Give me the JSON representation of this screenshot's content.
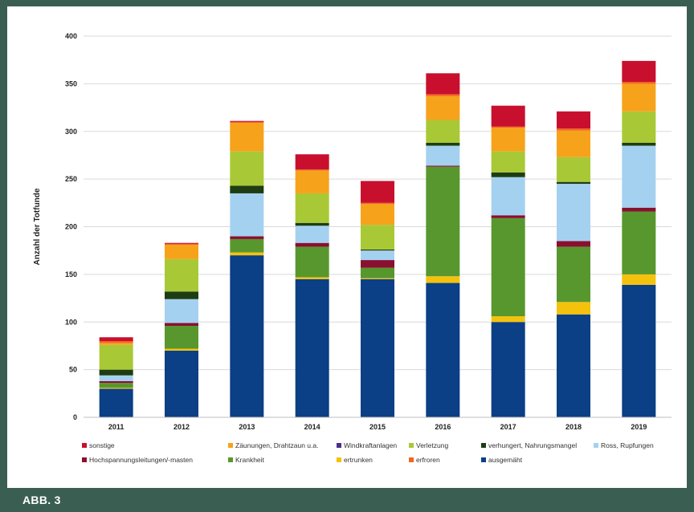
{
  "caption": "ABB. 3",
  "chart_data": {
    "type": "bar",
    "stacked": true,
    "title": "",
    "xlabel": "",
    "ylabel": "Anzahl der Totfunde",
    "ylim": [
      0,
      400
    ],
    "yticks": [
      0,
      50,
      100,
      150,
      200,
      250,
      300,
      350,
      400
    ],
    "grid": true,
    "legend_position": "bottom",
    "categories": [
      "2011",
      "2012",
      "2013",
      "2014",
      "2015",
      "2016",
      "2017",
      "2018",
      "2019"
    ],
    "series": [
      {
        "name": "ausgemäht",
        "color": "#0b3f86",
        "values": [
          30,
          70,
          170,
          145,
          145,
          141,
          100,
          108,
          139
        ]
      },
      {
        "name": "ertrunken",
        "color": "#f4c20d",
        "values": [
          1,
          2,
          3,
          2,
          1,
          7,
          6,
          13,
          11
        ]
      },
      {
        "name": "Krankheit",
        "color": "#58972e",
        "values": [
          5,
          24,
          14,
          32,
          11,
          115,
          103,
          58,
          66
        ]
      },
      {
        "name": "Hochspannungsleitungen/-masten",
        "color": "#8a1030",
        "values": [
          2,
          3,
          3,
          4,
          8,
          1,
          3,
          6,
          4
        ]
      },
      {
        "name": "Ross, Rupfungen",
        "color": "#a5d1f1",
        "values": [
          6,
          25,
          45,
          18,
          10,
          21,
          40,
          60,
          65
        ]
      },
      {
        "name": "verhungert, Nahrungsmangel",
        "color": "#1e3d12",
        "values": [
          6,
          8,
          8,
          3,
          1,
          3,
          5,
          2,
          3
        ]
      },
      {
        "name": "Verletzung",
        "color": "#a8c935",
        "values": [
          26,
          34,
          36,
          31,
          26,
          24,
          22,
          26,
          33
        ]
      },
      {
        "name": "Windkraftanlagen",
        "color": "#4a2f8e",
        "values": [
          0,
          0,
          0,
          0,
          0,
          0,
          0,
          0,
          0
        ]
      },
      {
        "name": "Zäunungen, Drahtzaun u.a.",
        "color": "#f7a21b",
        "values": [
          2,
          15,
          30,
          24,
          22,
          25,
          25,
          28,
          29
        ]
      },
      {
        "name": "erfroren",
        "color": "#f26522",
        "values": [
          2,
          1,
          1,
          1,
          1,
          2,
          1,
          2,
          2
        ]
      },
      {
        "name": "sonstige",
        "color": "#c8102e",
        "values": [
          4,
          1,
          1,
          16,
          23,
          22,
          22,
          18,
          22
        ]
      }
    ],
    "legend": [
      {
        "name": "sonstige",
        "color": "#c8102e"
      },
      {
        "name": "Zäunungen, Drahtzaun u.a.",
        "color": "#f7a21b"
      },
      {
        "name": "Windkraftanlagen",
        "color": "#4a2f8e"
      },
      {
        "name": "Verletzung",
        "color": "#a8c935"
      },
      {
        "name": "verhungert, Nahrungsmangel",
        "color": "#1e3d12"
      },
      {
        "name": "Ross, Rupfungen",
        "color": "#a5d1f1"
      },
      {
        "name": "Hochspannungsleitungen/-masten",
        "color": "#8a1030"
      },
      {
        "name": "Krankheit",
        "color": "#58972e"
      },
      {
        "name": "ertrunken",
        "color": "#f4c20d"
      },
      {
        "name": "erfroren",
        "color": "#f26522"
      },
      {
        "name": "ausgemäht",
        "color": "#0b3f86"
      }
    ]
  }
}
